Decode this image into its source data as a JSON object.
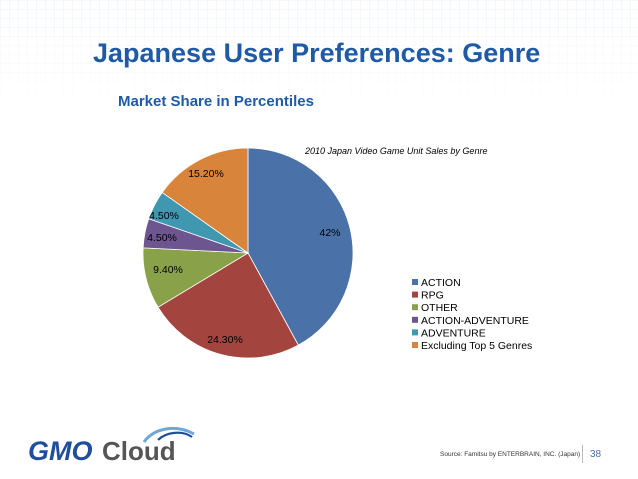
{
  "slide": {
    "title": "Japanese User Preferences: Genre",
    "subtitle": "Market Share in Percentiles",
    "source": "Source: Famitsu by ENTERBRAIN, INC. (Japan)",
    "page_number": "38",
    "logo": {
      "text_gmo": "GMO",
      "text_cloud": "Cloud",
      "icon": "cloud-logo-icon"
    },
    "colors": {
      "title": "#1f5aa6",
      "logo_blue": "#1f4e9c",
      "logo_gray": "#555555"
    }
  },
  "chart_data": {
    "type": "pie",
    "title": "2010 Japan Video Game Unit Sales by Genre",
    "categories": [
      "ACTION",
      "RPG",
      "OTHER",
      "ACTION-ADVENTURE",
      "ADVENTURE",
      "Excluding Top 5 Genres"
    ],
    "values": [
      42,
      24.3,
      9.4,
      4.5,
      4.5,
      15.2
    ],
    "data_labels": [
      "42%",
      "24.30%",
      "9.40%",
      "4.50%",
      "4.50%",
      "15.20%"
    ],
    "colors": [
      "#4a72a8",
      "#a4443f",
      "#89a24a",
      "#6d5590",
      "#3f97b0",
      "#d9843b"
    ],
    "start": "12 o'clock",
    "direction": "clockwise",
    "legend": "right"
  }
}
